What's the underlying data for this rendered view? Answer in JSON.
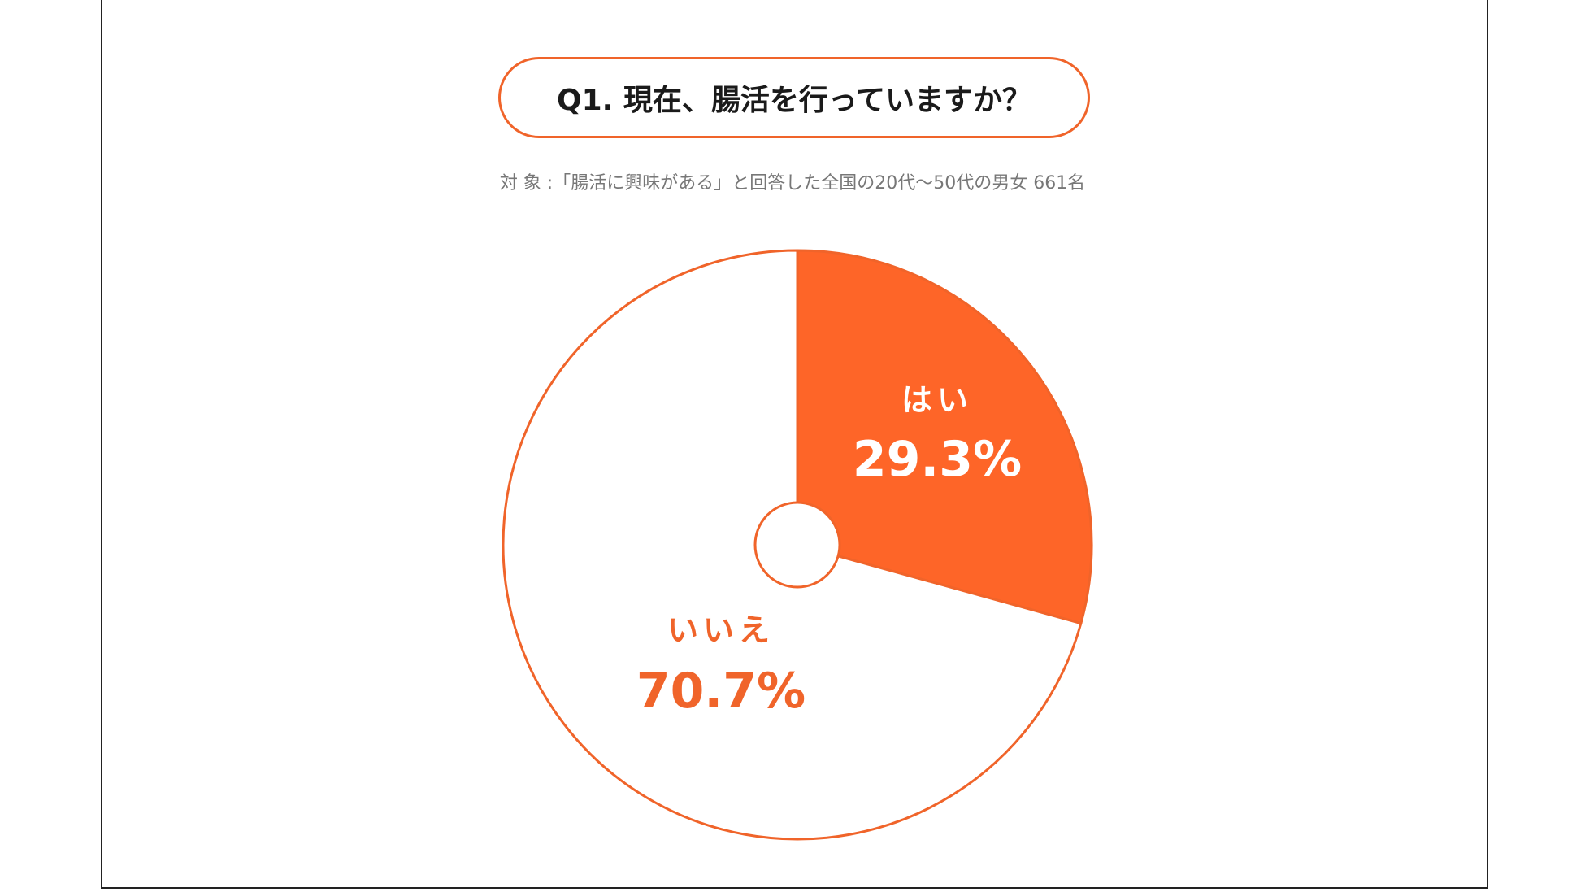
{
  "title": "Q1. 現在、腸活を行っていますか？",
  "subtitle": "対 象 :「腸活に興味がある」と回答した全国の20代〜50代の男女 661名",
  "colors": {
    "accent": "#f0642a",
    "yes_fill": "#fe6528",
    "no_fill": "#ffffff",
    "border": "#222222"
  },
  "chart_data": {
    "type": "pie",
    "title": "Q1. 現在、腸活を行っていますか？",
    "subtitle": "対 象 :「腸活に興味がある」と回答した全国の20代〜50代の男女 661名",
    "slices": [
      {
        "label": "はい",
        "value": 29.3,
        "value_label": "29.3%",
        "color": "#fe6528",
        "label_color": "#ffffff"
      },
      {
        "label": "いいえ",
        "value": 70.7,
        "value_label": "70.7%",
        "color": "#ffffff",
        "label_color": "#f0642a"
      }
    ],
    "start_angle": "12 o'clock",
    "direction": "clockwise",
    "donut_hole": true
  }
}
